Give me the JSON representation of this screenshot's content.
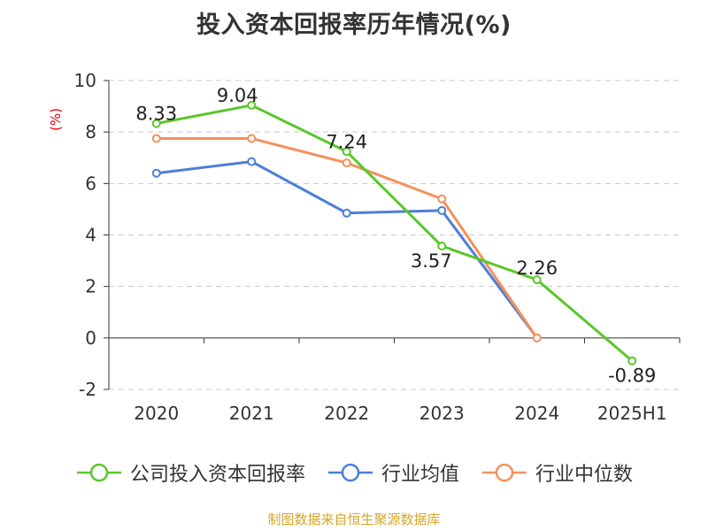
{
  "chart_data": {
    "type": "line",
    "title": "投入资本回报率历年情况(%)",
    "ylabel": "(%)",
    "categories": [
      "2020",
      "2021",
      "2022",
      "2023",
      "2024",
      "2025H1"
    ],
    "ylim": [
      -2,
      10
    ],
    "yticks": [
      -2,
      0,
      2,
      4,
      6,
      8,
      10
    ],
    "grid": true,
    "legend_position": "bottom",
    "series": [
      {
        "name": "公司投入资本回报率",
        "color": "#5ac72b",
        "values": [
          8.33,
          9.04,
          7.24,
          3.57,
          2.26,
          -0.89
        ],
        "labels": [
          "8.33",
          "9.04",
          "7.24",
          "3.57",
          "2.26",
          "-0.89"
        ]
      },
      {
        "name": "行业均值",
        "color": "#4c7fd8",
        "values": [
          6.4,
          6.85,
          4.85,
          4.95,
          0.0,
          null
        ]
      },
      {
        "name": "行业中位数",
        "color": "#f5915a",
        "values": [
          7.75,
          7.75,
          6.8,
          5.4,
          0.0,
          null
        ]
      }
    ]
  },
  "source": "制图数据来自恒生聚源数据库"
}
